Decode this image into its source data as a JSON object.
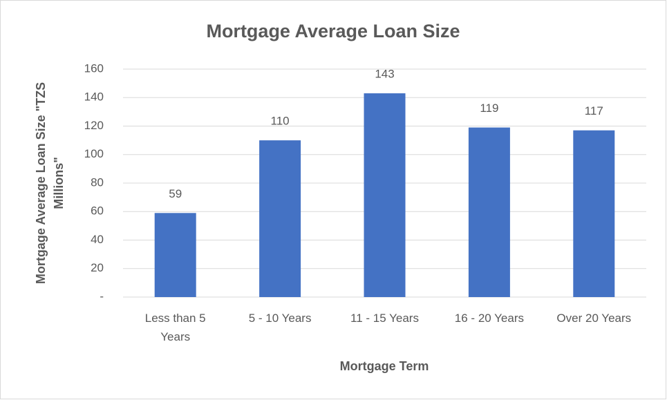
{
  "chart_data": {
    "type": "bar",
    "title": "Mortgage Average Loan Size",
    "xlabel": "Mortgage Term",
    "ylabel": "Mortgage Average Loan Size \"TZS Millions\"",
    "categories": [
      "Less than 5 Years",
      "5 - 10 Years",
      "11 - 15 Years",
      "16 - 20 Years",
      "Over 20 Years"
    ],
    "values": [
      59,
      110,
      143,
      119,
      117
    ],
    "color": "#4472c4",
    "ylim": [
      0,
      160
    ],
    "yticks": [
      {
        "value": 0,
        "label": "-"
      },
      20,
      40,
      60,
      80,
      100,
      120,
      140,
      160
    ],
    "grid": true
  }
}
